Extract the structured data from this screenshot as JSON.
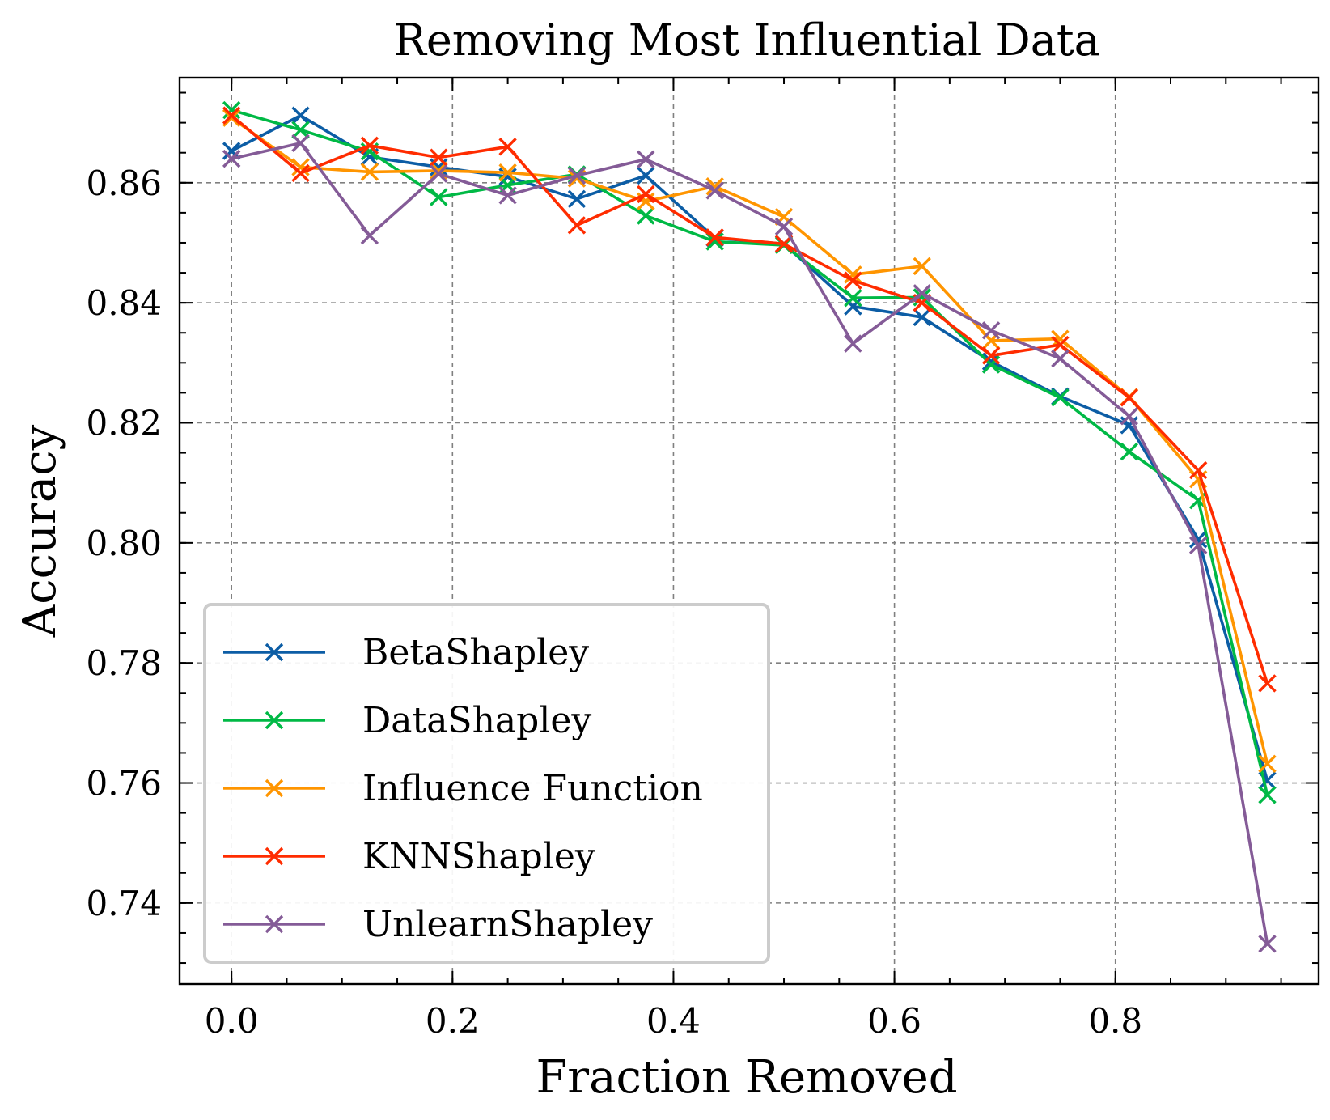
{
  "chart_data": {
    "type": "line",
    "title": "Removing Most Influential Data",
    "xlabel": "Fraction Removed",
    "ylabel": "Accuracy",
    "xlim": [
      -0.047,
      0.984
    ],
    "ylim": [
      0.7265,
      0.8775
    ],
    "xticks": [
      0.0,
      0.2,
      0.4,
      0.6,
      0.8
    ],
    "xtick_labels": [
      "0.0",
      "0.2",
      "0.4",
      "0.6",
      "0.8"
    ],
    "yticks": [
      0.74,
      0.76,
      0.78,
      0.8,
      0.82,
      0.84,
      0.86
    ],
    "ytick_labels": [
      "0.74",
      "0.76",
      "0.78",
      "0.80",
      "0.82",
      "0.84",
      "0.86"
    ],
    "grid": true,
    "legend_position": "lower-left",
    "marker": "x",
    "x": [
      0.0,
      0.0625,
      0.125,
      0.1875,
      0.25,
      0.3125,
      0.375,
      0.4375,
      0.5,
      0.5625,
      0.625,
      0.6875,
      0.75,
      0.8125,
      0.875,
      0.9375
    ],
    "series": [
      {
        "name": "BetaShapley",
        "color": "#0C5DA5",
        "values": [
          0.8653,
          0.8712,
          0.8643,
          0.8626,
          0.861,
          0.8573,
          0.8612,
          0.8508,
          0.8498,
          0.8394,
          0.8376,
          0.8302,
          0.8244,
          0.8196,
          0.8006,
          0.7604
        ]
      },
      {
        "name": "DataShapley",
        "color": "#00B945",
        "values": [
          0.8721,
          0.8688,
          0.8652,
          0.8576,
          0.8596,
          0.8614,
          0.8545,
          0.8502,
          0.8496,
          0.8408,
          0.8409,
          0.8297,
          0.8242,
          0.8152,
          0.8071,
          0.758
        ]
      },
      {
        "name": "Influence Function",
        "color": "#FF9500",
        "values": [
          0.8708,
          0.8626,
          0.8618,
          0.862,
          0.8617,
          0.8607,
          0.8569,
          0.8594,
          0.8543,
          0.8447,
          0.8461,
          0.8337,
          0.834,
          0.8243,
          0.8106,
          0.7632
        ]
      },
      {
        "name": "KNNShapley",
        "color": "#FF2C00",
        "values": [
          0.8712,
          0.8616,
          0.8662,
          0.8642,
          0.866,
          0.8529,
          0.8581,
          0.8509,
          0.8498,
          0.8437,
          0.84,
          0.8312,
          0.833,
          0.8242,
          0.8121,
          0.7766
        ]
      },
      {
        "name": "UnlearnShapley",
        "color": "#845B97",
        "values": [
          0.864,
          0.8666,
          0.8512,
          0.8615,
          0.8579,
          0.8612,
          0.8639,
          0.8587,
          0.8527,
          0.8332,
          0.8416,
          0.8354,
          0.8307,
          0.8211,
          0.7996,
          0.7332
        ]
      }
    ]
  }
}
